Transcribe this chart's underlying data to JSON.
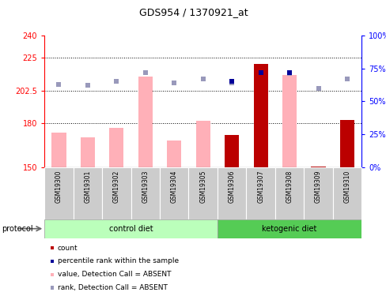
{
  "title": "GDS954 / 1370921_at",
  "samples": [
    "GSM19300",
    "GSM19301",
    "GSM19302",
    "GSM19303",
    "GSM19304",
    "GSM19305",
    "GSM19306",
    "GSM19307",
    "GSM19308",
    "GSM19309",
    "GSM19310"
  ],
  "pink_bar_values": [
    173.5,
    170.5,
    177.0,
    212.0,
    168.5,
    181.5,
    null,
    null,
    213.0,
    null,
    null
  ],
  "red_bar_values": [
    null,
    null,
    null,
    null,
    null,
    null,
    172.0,
    220.5,
    null,
    150.5,
    182.5
  ],
  "blue_sq_values": [
    65,
    63,
    66,
    72,
    64,
    68,
    65,
    72,
    72,
    60,
    68
  ],
  "lavender_sq_values": [
    63,
    62,
    65,
    72,
    64,
    67,
    64,
    null,
    71,
    null,
    67
  ],
  "dark_blue_indices": [
    6,
    7,
    8
  ],
  "left_ylim": [
    150,
    240
  ],
  "right_ylim": [
    0,
    100
  ],
  "left_yticks": [
    150,
    180,
    202.5,
    225,
    240
  ],
  "right_yticks": [
    0,
    25,
    50,
    75,
    100
  ],
  "left_ytick_labels": [
    "150",
    "180",
    "202.5",
    "225",
    "240"
  ],
  "right_ytick_labels": [
    "0%",
    "25%",
    "50%",
    "75%",
    "100%"
  ],
  "hlines": [
    225,
    202.5,
    180
  ],
  "pink_color": "#FFB0B8",
  "red_color": "#BB0000",
  "blue_dark_color": "#000099",
  "blue_light_color": "#9999BB",
  "control_color": "#BBFFBB",
  "keto_color": "#55CC55",
  "protocol_label": "protocol",
  "legend_items": [
    {
      "color": "#BB0000",
      "label": "count"
    },
    {
      "color": "#000099",
      "label": "percentile rank within the sample"
    },
    {
      "color": "#FFB0B8",
      "label": "value, Detection Call = ABSENT"
    },
    {
      "color": "#9999BB",
      "label": "rank, Detection Call = ABSENT"
    }
  ]
}
